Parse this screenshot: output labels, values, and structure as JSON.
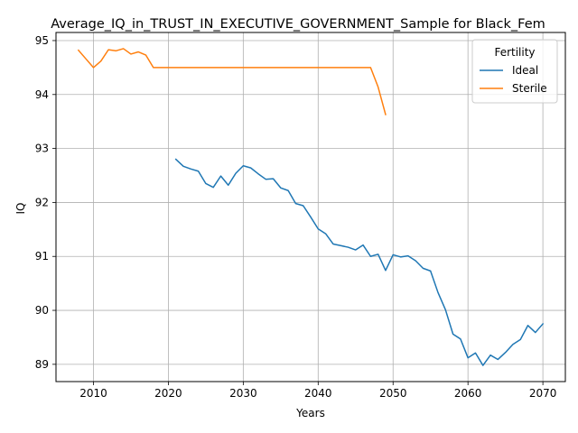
{
  "chart_data": {
    "type": "line",
    "title": "Average_IQ_in_TRUST_IN_EXECUTIVE_GOVERNMENT_Sample for Black_Fem",
    "xlabel": "Years",
    "ylabel": "IQ",
    "xlim": [
      2005,
      2073
    ],
    "ylim": [
      88.68,
      95.15
    ],
    "xticks": [
      2010,
      2020,
      2030,
      2040,
      2050,
      2060,
      2070
    ],
    "yticks": [
      89,
      90,
      91,
      92,
      93,
      94,
      95
    ],
    "grid": true,
    "legend": {
      "title": "Fertility",
      "placement": "top-right"
    },
    "series": [
      {
        "name": "Ideal",
        "color": "#1f77b4",
        "x": [
          2021,
          2022,
          2023,
          2024,
          2025,
          2026,
          2027,
          2028,
          2029,
          2030,
          2031,
          2032,
          2033,
          2034,
          2035,
          2036,
          2037,
          2038,
          2039,
          2040,
          2041,
          2042,
          2043,
          2044,
          2045,
          2046,
          2047,
          2048,
          2049,
          2050,
          2051,
          2052,
          2053,
          2054,
          2055,
          2056,
          2057,
          2058,
          2059,
          2060,
          2061,
          2062,
          2063,
          2064,
          2065,
          2066,
          2067,
          2068,
          2069,
          2070
        ],
        "y": [
          92.8,
          92.67,
          92.62,
          92.58,
          92.35,
          92.28,
          92.49,
          92.32,
          92.54,
          92.68,
          92.64,
          92.53,
          92.43,
          92.44,
          92.27,
          92.22,
          91.98,
          91.94,
          91.73,
          91.51,
          91.42,
          91.23,
          91.2,
          91.17,
          91.12,
          91.21,
          91.0,
          91.04,
          90.74,
          91.03,
          90.99,
          91.01,
          90.92,
          90.78,
          90.73,
          90.33,
          90.01,
          89.56,
          89.47,
          89.12,
          89.21,
          88.98,
          89.17,
          89.09,
          89.22,
          89.37,
          89.46,
          89.72,
          89.59,
          89.75
        ]
      },
      {
        "name": "Sterile",
        "color": "#ff7f0e",
        "x": [
          2008,
          2009,
          2010,
          2011,
          2012,
          2013,
          2014,
          2015,
          2016,
          2017,
          2018,
          2019,
          2020,
          2021,
          2022,
          2023,
          2024,
          2025,
          2026,
          2027,
          2028,
          2029,
          2030,
          2031,
          2032,
          2033,
          2034,
          2035,
          2036,
          2037,
          2038,
          2039,
          2040,
          2041,
          2042,
          2043,
          2044,
          2045,
          2046,
          2047,
          2048,
          2049
        ],
        "y": [
          94.82,
          94.66,
          94.5,
          94.62,
          94.83,
          94.81,
          94.85,
          94.75,
          94.79,
          94.73,
          94.5,
          94.5,
          94.5,
          94.5,
          94.5,
          94.5,
          94.5,
          94.5,
          94.5,
          94.5,
          94.5,
          94.5,
          94.5,
          94.5,
          94.5,
          94.5,
          94.5,
          94.5,
          94.5,
          94.5,
          94.5,
          94.5,
          94.5,
          94.5,
          94.5,
          94.5,
          94.5,
          94.5,
          94.5,
          94.5,
          94.14,
          93.63
        ]
      }
    ]
  }
}
